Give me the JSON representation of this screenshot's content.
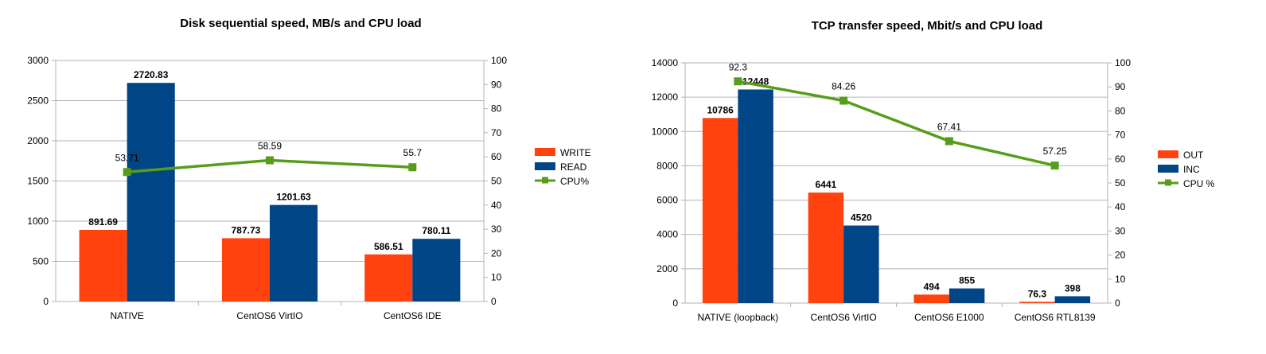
{
  "chart_data": [
    {
      "type": "bar",
      "title": "Disk sequential speed, MB/s and CPU load",
      "categories": [
        "NATIVE",
        "CentOS6 VirtIO",
        "CentOS6 IDE"
      ],
      "series": [
        {
          "name": "WRITE",
          "values": [
            891.69,
            787.73,
            586.51
          ],
          "color": "#ff420e",
          "labels": [
            "891.69",
            "787.73",
            "586.51"
          ]
        },
        {
          "name": "READ",
          "values": [
            2720.83,
            1201.63,
            780.11
          ],
          "color": "#004586",
          "labels": [
            "2720.83",
            "1201.63",
            "780.11"
          ]
        }
      ],
      "line": {
        "name": "CPU%",
        "values": [
          53.71,
          58.59,
          55.7
        ],
        "labels": [
          "53.71",
          "58.59",
          "55.7"
        ],
        "color": "#579d1c",
        "axis": "right"
      },
      "ylim": [
        0,
        3000
      ],
      "yticks": [
        "0",
        "500",
        "1000",
        "1500",
        "2000",
        "2500",
        "3000"
      ],
      "y2lim": [
        0,
        100
      ],
      "y2ticks": [
        "0",
        "10",
        "20",
        "30",
        "40",
        "50",
        "60",
        "70",
        "80",
        "90",
        "100"
      ],
      "legend": "right",
      "grid": true
    },
    {
      "type": "bar",
      "title": "TCP transfer speed, Mbit/s and CPU load",
      "categories": [
        "NATIVE (loopback)",
        "CentOS6 VirtIO",
        "CentOS6 E1000",
        "CentOS6 RTL8139"
      ],
      "series": [
        {
          "name": "OUT",
          "values": [
            10786,
            6441,
            494,
            76.3
          ],
          "color": "#ff420e",
          "labels": [
            "10786",
            "6441",
            "494",
            "76.3"
          ]
        },
        {
          "name": "INC",
          "values": [
            12448,
            4520,
            855,
            398
          ],
          "color": "#004586",
          "labels": [
            "12448",
            "4520",
            "855",
            "398"
          ]
        }
      ],
      "line": {
        "name": "CPU %",
        "values": [
          92.3,
          84.26,
          67.41,
          57.25
        ],
        "labels": [
          "92.3",
          "84.26",
          "67.41",
          "57.25"
        ],
        "color": "#579d1c",
        "axis": "right"
      },
      "ylim": [
        0,
        14000
      ],
      "yticks": [
        "0",
        "2000",
        "4000",
        "6000",
        "8000",
        "10000",
        "12000",
        "14000"
      ],
      "y2lim": [
        0,
        100
      ],
      "y2ticks": [
        "0",
        "10",
        "20",
        "30",
        "40",
        "50",
        "60",
        "70",
        "80",
        "90",
        "100"
      ],
      "legend": "right",
      "grid": true
    }
  ]
}
